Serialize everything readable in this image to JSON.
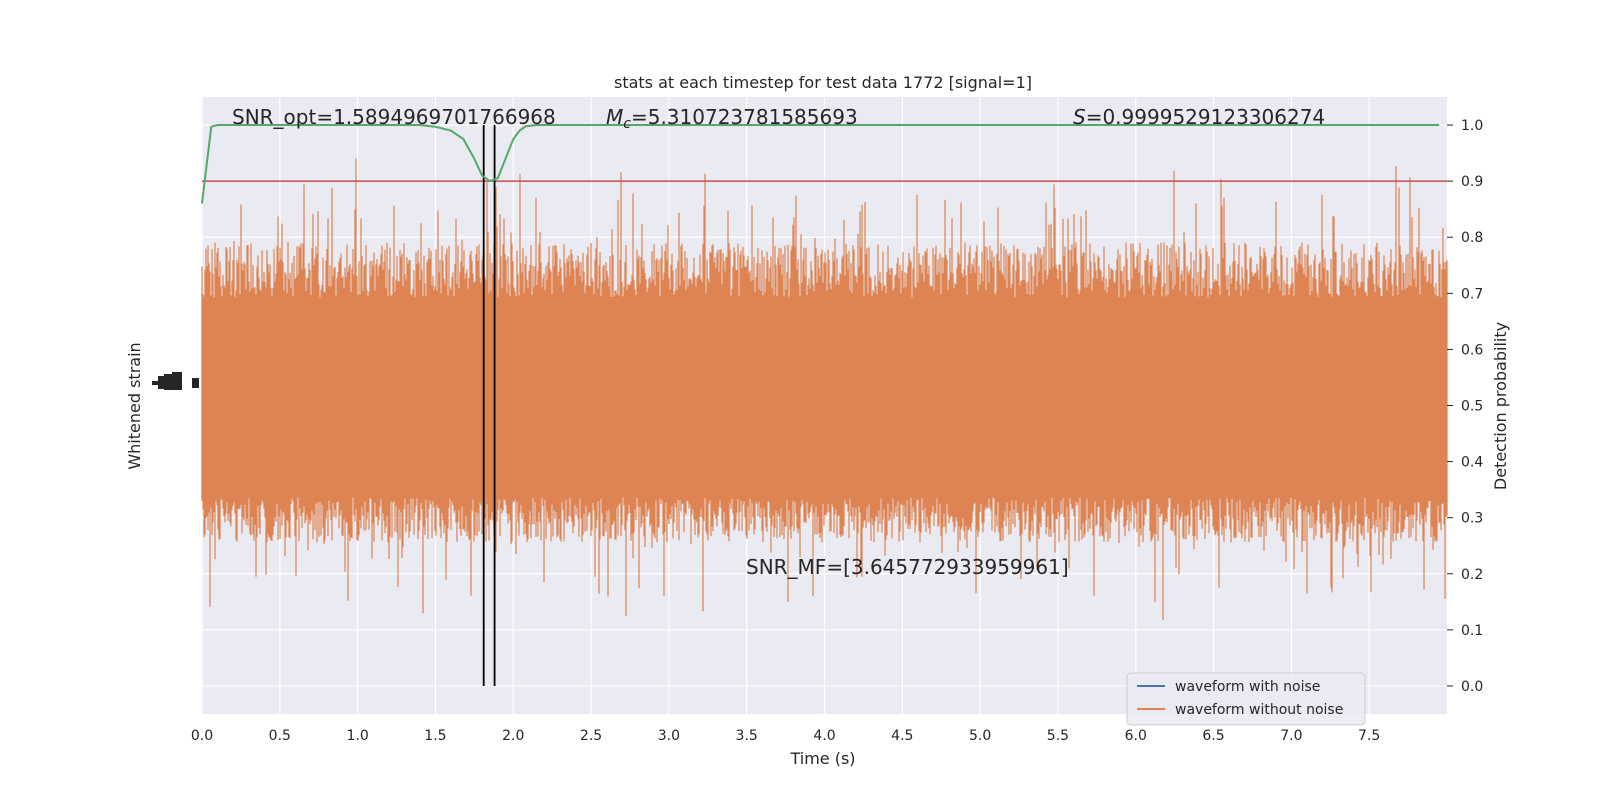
{
  "chart_data": {
    "type": "line",
    "title": "stats at each timestep for test data 1772 [signal=1]",
    "xlabel": "Time (s)",
    "ylabel_left": "Whitened strain",
    "ylabel_right": "Detection probability",
    "xlim": [
      0.0,
      8.0
    ],
    "ylim_right": [
      -0.05,
      1.05
    ],
    "x_ticks": [
      "0.0",
      "0.5",
      "1.0",
      "1.5",
      "2.0",
      "2.5",
      "3.0",
      "3.5",
      "4.0",
      "4.5",
      "5.0",
      "5.5",
      "6.0",
      "6.5",
      "7.0",
      "7.5"
    ],
    "y_ticks_right": [
      "0.0",
      "0.1",
      "0.2",
      "0.3",
      "0.4",
      "0.5",
      "0.6",
      "0.7",
      "0.8",
      "0.9",
      "1.0"
    ],
    "grid": true,
    "annotations": {
      "snr_opt": "SNR_opt=1.5894969701766968",
      "mc_symbol": "M",
      "mc_sub": "c",
      "mc_value": "=5.310723781585693",
      "s_symbol": "S",
      "s_value": "=0.9999529123306274",
      "snr_mf": "SNR_MF=[3.645772933959961]"
    },
    "threshold": 0.9,
    "vlines_x": [
      1.81,
      1.88
    ],
    "detection_curve": {
      "x": [
        0.0,
        0.03,
        0.06,
        0.1,
        0.2,
        0.5,
        1.0,
        1.4,
        1.5,
        1.6,
        1.68,
        1.75,
        1.8,
        1.85,
        1.9,
        1.95,
        2.0,
        2.04,
        2.08,
        2.15,
        2.3,
        3.0,
        4.0,
        5.0,
        6.0,
        7.0,
        7.95
      ],
      "y": [
        0.86,
        0.93,
        0.997,
        1.0,
        1.0,
        1.0,
        1.0,
        1.0,
        0.997,
        0.99,
        0.975,
        0.94,
        0.91,
        0.9,
        0.905,
        0.94,
        0.975,
        0.99,
        0.998,
        1.0,
        1.0,
        1.0,
        1.0,
        1.0,
        1.0,
        1.0,
        1.0
      ]
    },
    "series": [
      {
        "name": "waveform with noise",
        "color": "#4c72b0"
      },
      {
        "name": "waveform without noise",
        "color": "#dd8452"
      }
    ],
    "detection_color": "#55a868",
    "threshold_color": "#c44e52",
    "legend_placement": "lower-right"
  }
}
